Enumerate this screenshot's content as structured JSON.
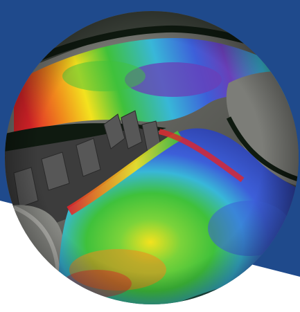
{
  "colors": {
    "background_blue": "#1f4a8c",
    "background_white": "#ffffff",
    "water_dark": "#0f1a10",
    "terrain_gray": "#6f706c",
    "building_gray": "#3c3c3c",
    "bathymetry_red": "#e0242a",
    "bathymetry_orange": "#f08a1c",
    "bathymetry_yellow": "#f3e21e",
    "bathymetry_green": "#3fc13b",
    "bathymetry_cyan": "#38b7d8",
    "bathymetry_blue": "#3d5fd9",
    "bathymetry_purple": "#6a3fb8"
  },
  "image": {
    "subject": "circular-aerial-bathymetry-render"
  }
}
